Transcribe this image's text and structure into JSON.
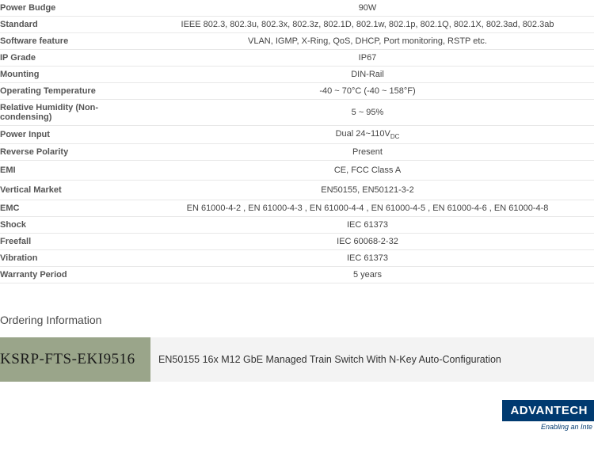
{
  "specs": [
    {
      "label": "Power Budge",
      "value": "90W"
    },
    {
      "label": "Standard",
      "value": "IEEE 802.3, 802.3u, 802.3x, 802.3z, 802.1D, 802.1w, 802.1p, 802.1Q, 802.1X, 802.3ad, 802.3ab"
    },
    {
      "label": "Software feature",
      "value": "VLAN, IGMP, X-Ring, QoS, DHCP, Port monitoring, RSTP etc."
    },
    {
      "label": "IP Grade",
      "value": "IP67"
    },
    {
      "label": "Mounting",
      "value": "DIN-Rail"
    },
    {
      "label": "Operating Temperature",
      "value": "-40 ~ 70°C (-40 ~ 158°F)"
    },
    {
      "label": "Relative Humidity (Non-condensing)",
      "value": "5 ~ 95%"
    },
    {
      "label": "Power Input",
      "value": "Dual 24~110V",
      "sub": "DC"
    },
    {
      "label": "Reverse Polarity",
      "value": "Present"
    },
    {
      "label": "EMI",
      "value": "CE, FCC Class A"
    },
    {
      "label": "Vertical Market",
      "value": "EN50155, EN50121-3-2"
    },
    {
      "label": "EMC",
      "value": "EN 61000-4-2 , EN 61000-4-3 , EN 61000-4-4 , EN 61000-4-5 , EN 61000-4-6 , EN 61000-4-8"
    },
    {
      "label": "Shock",
      "value": "IEC 61373"
    },
    {
      "label": "Freefall",
      "value": "IEC 60068-2-32"
    },
    {
      "label": "Vibration",
      "value": "IEC 61373"
    },
    {
      "label": "Warranty Period",
      "value": "5 years"
    }
  ],
  "ordering": {
    "heading": "Ordering Information",
    "part_number": "KSRP-FTS-EKI9516",
    "description": "EN50155 16x M12 GbE Managed Train Switch With N-Key Auto-Configuration"
  },
  "logo": {
    "brand": "ADVANTECH",
    "tagline": "Enabling an Inte"
  },
  "colors": {
    "row_border": "#e8e8e8",
    "label_text": "#555555",
    "value_text": "#444444",
    "ordering_part_bg": "#9aa58a",
    "ordering_desc_bg": "#f3f3f3",
    "logo_bg": "#003a70",
    "logo_text": "#ffffff"
  },
  "row_heights": {
    "normal": 20,
    "emi": 24,
    "vertical_market": 24
  }
}
